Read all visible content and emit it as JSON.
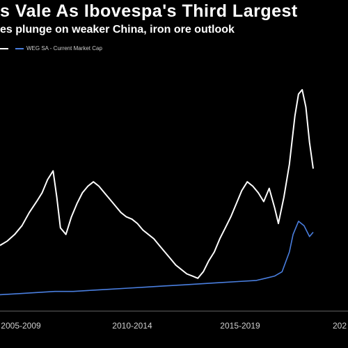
{
  "header": {
    "title": "s Vale As Ibovespa's Third Largest",
    "subtitle": "es plunge on weaker China, iron ore outlook"
  },
  "legend": {
    "items": [
      {
        "label": "",
        "color": "#ffffff"
      },
      {
        "label": "WEG SA - Current Market Cap",
        "color": "#4a7fe0"
      }
    ]
  },
  "chart_data": {
    "type": "line",
    "x_tick_labels": [
      "2005-2009",
      "2010-2014",
      "2015-2019",
      "202"
    ],
    "x_range": [
      2005,
      2024
    ],
    "y_range": [
      0,
      100
    ],
    "grid": false,
    "legend_placement": "top-left",
    "series": [
      {
        "color": "#ffffff",
        "x": [
          2005.0,
          2005.4,
          2005.8,
          2006.2,
          2006.6,
          2007.0,
          2007.3,
          2007.6,
          2007.9,
          2008.1,
          2008.3,
          2008.6,
          2008.9,
          2009.2,
          2009.5,
          2009.8,
          2010.1,
          2010.4,
          2010.7,
          2011.0,
          2011.3,
          2011.6,
          2011.9,
          2012.2,
          2012.5,
          2012.8,
          2013.1,
          2013.4,
          2013.7,
          2014.0,
          2014.3,
          2014.6,
          2014.9,
          2015.2,
          2015.5,
          2015.8,
          2016.1,
          2016.4,
          2016.7,
          2017.0,
          2017.3,
          2017.6,
          2017.9,
          2018.2,
          2018.5,
          2018.8,
          2019.1,
          2019.4,
          2019.7,
          2020.0,
          2020.2,
          2020.5,
          2020.8,
          2021.1,
          2021.3,
          2021.5,
          2021.7,
          2021.9,
          2022.1
        ],
        "values": [
          23,
          25,
          28,
          32,
          38,
          43,
          47,
          53,
          57,
          45,
          31,
          28,
          36,
          42,
          47,
          50,
          52,
          50,
          47,
          44,
          41,
          38,
          36,
          35,
          33,
          30,
          28,
          26,
          23,
          20,
          17,
          14,
          12,
          10,
          9,
          8,
          11,
          16,
          20,
          26,
          31,
          36,
          42,
          48,
          52,
          50,
          47,
          43,
          49,
          40,
          33,
          45,
          60,
          82,
          92,
          94,
          86,
          70,
          58
        ]
      },
      {
        "name": "WEG SA - Current Market Cap",
        "color": "#4a7fe0",
        "x": [
          2005.0,
          2006.0,
          2007.0,
          2008.0,
          2009.0,
          2010.0,
          2011.0,
          2012.0,
          2013.0,
          2014.0,
          2015.0,
          2016.0,
          2017.0,
          2018.0,
          2019.0,
          2019.5,
          2020.0,
          2020.4,
          2020.8,
          2021.0,
          2021.3,
          2021.6,
          2021.9,
          2022.1
        ],
        "values": [
          0.5,
          1,
          1.5,
          2,
          2,
          2.5,
          3,
          3.5,
          4,
          4.5,
          5,
          5.5,
          6,
          6.5,
          7,
          8,
          9,
          11,
          20,
          28,
          34,
          32,
          27,
          29
        ]
      }
    ]
  }
}
